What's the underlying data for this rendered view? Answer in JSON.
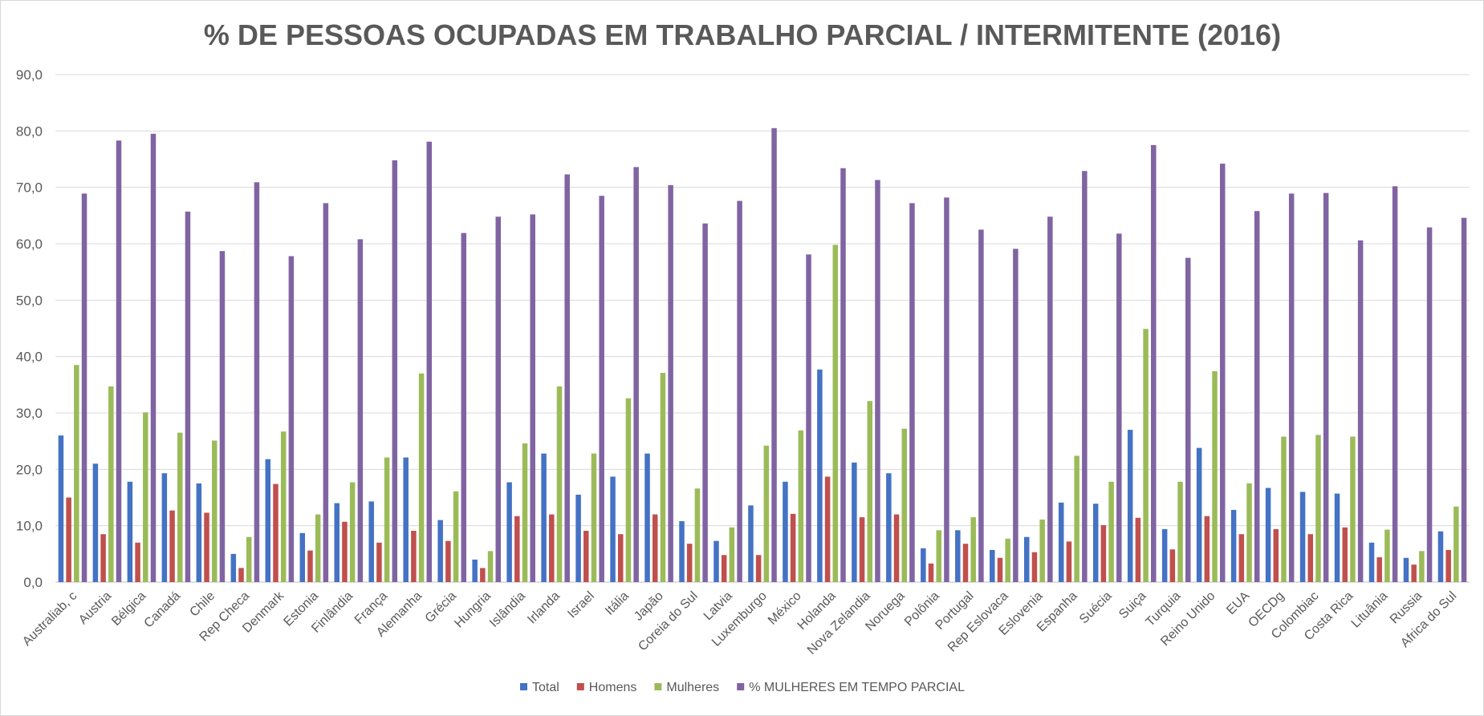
{
  "chart_data": {
    "type": "bar",
    "title": "% DE PESSOAS OCUPADAS EM TRABALHO PARCIAL / INTERMITENTE (2016)",
    "xlabel": "",
    "ylabel": "",
    "ylim": [
      0,
      90
    ],
    "yticks": [
      "0,0",
      "10,0",
      "20,0",
      "30,0",
      "40,0",
      "50,0",
      "60,0",
      "70,0",
      "80,0",
      "90,0"
    ],
    "grid": true,
    "legend_position": "bottom",
    "categories": [
      "Australiab, c",
      "Austria",
      "Bélgica",
      "Canadá",
      "Chile",
      "Rep Checa",
      "Denmark",
      "Estonia",
      "Finlândia",
      "França",
      "Alemanha",
      "Grécia",
      "Hungria",
      "Islândia",
      "Irlanda",
      "Israel",
      "Itália",
      "Japão",
      "Coreia do Sul",
      "Latvia",
      "Luxemburgo",
      "México",
      "Holanda",
      "Nova Zelandia",
      "Noruega",
      "Polônia",
      "Portugal",
      "Rep Eslovaca",
      "Eslovenia",
      "Espanha",
      "Suécia",
      "Suiça",
      "Turquia",
      "Reino Unido",
      "EUA",
      "OECDg",
      "Colombiac",
      "Costa Rica",
      "Lituânia",
      "Russia",
      "Africa do Sul"
    ],
    "series": [
      {
        "name": "Total",
        "color": "#4472c4",
        "values": [
          26.0,
          21.0,
          17.8,
          19.3,
          17.5,
          5.0,
          21.8,
          8.7,
          14.0,
          14.3,
          22.1,
          11.0,
          4.0,
          17.7,
          22.8,
          15.5,
          18.7,
          22.8,
          10.8,
          7.3,
          13.6,
          17.8,
          37.7,
          21.2,
          19.3,
          6.0,
          9.2,
          5.7,
          8.0,
          14.1,
          13.9,
          27.0,
          9.4,
          23.8,
          12.8,
          16.7,
          16.0,
          15.7,
          7.0,
          4.3,
          9.0
        ]
      },
      {
        "name": "Homens",
        "color": "#c0504d",
        "values": [
          15.0,
          8.5,
          7.0,
          12.7,
          12.3,
          2.5,
          17.4,
          5.6,
          10.7,
          7.0,
          9.1,
          7.3,
          2.5,
          11.7,
          12.0,
          9.1,
          8.5,
          12.0,
          6.8,
          4.8,
          4.8,
          12.1,
          18.7,
          11.5,
          12.0,
          3.3,
          6.8,
          4.3,
          5.3,
          7.2,
          10.1,
          11.4,
          5.8,
          11.7,
          8.5,
          9.4,
          8.5,
          9.7,
          4.4,
          3.1,
          5.7
        ]
      },
      {
        "name": "Mulheres",
        "color": "#9bbb59",
        "values": [
          38.5,
          34.7,
          30.1,
          26.5,
          25.1,
          8.0,
          26.7,
          12.0,
          17.7,
          22.1,
          37.0,
          16.1,
          5.5,
          24.6,
          34.7,
          22.8,
          32.6,
          37.1,
          16.6,
          9.7,
          24.2,
          26.9,
          59.8,
          32.1,
          27.2,
          9.2,
          11.5,
          7.7,
          11.1,
          22.4,
          17.8,
          44.9,
          17.8,
          37.4,
          17.5,
          25.8,
          26.1,
          25.8,
          9.3,
          5.5,
          13.4
        ]
      },
      {
        "name": "% MULHERES EM TEMPO PARCIAL",
        "color": "#8064a2",
        "values": [
          68.9,
          78.3,
          79.5,
          65.7,
          58.7,
          70.9,
          57.8,
          67.2,
          60.8,
          74.8,
          78.1,
          61.9,
          64.8,
          65.2,
          72.3,
          68.5,
          73.6,
          70.4,
          63.6,
          67.6,
          80.5,
          58.1,
          73.4,
          71.3,
          67.2,
          68.2,
          62.5,
          59.1,
          64.8,
          72.9,
          61.8,
          77.5,
          57.5,
          74.2,
          65.8,
          68.9,
          69.0,
          60.6,
          70.2,
          62.9,
          64.6
        ]
      }
    ]
  }
}
